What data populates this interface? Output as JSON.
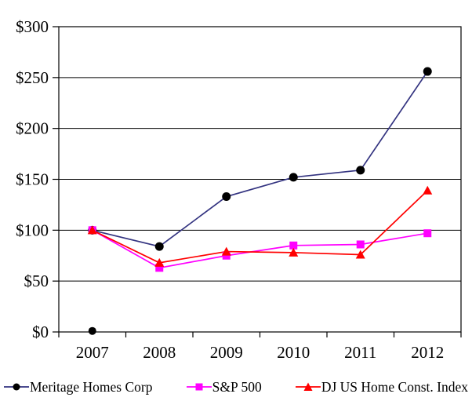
{
  "chart_data": {
    "type": "line",
    "title": "",
    "categories": [
      "2007",
      "2008",
      "2009",
      "2010",
      "2011",
      "2012"
    ],
    "series": [
      {
        "name": "Meritage Homes Corp",
        "marker": "circle",
        "marker_color": "#000000",
        "line_color": "#333380",
        "values": [
          100,
          84,
          133,
          152,
          159,
          256
        ]
      },
      {
        "name": "S&P 500",
        "marker": "square",
        "marker_color": "#ff00ff",
        "line_color": "#ff00ff",
        "values": [
          100,
          63,
          75,
          85,
          86,
          97
        ]
      },
      {
        "name": "DJ US Home Const. Index",
        "marker": "triangle",
        "marker_color": "#ff0000",
        "line_color": "#ff0000",
        "values": [
          100,
          68,
          79,
          78,
          76,
          139
        ]
      }
    ],
    "stray_points": [
      {
        "series": "Meritage Homes Corp",
        "category": "2007",
        "value": 1,
        "marker": "circle",
        "color": "#000000"
      }
    ],
    "y_ticks": [
      {
        "label": "$300",
        "value": 300
      },
      {
        "label": "$250",
        "value": 250
      },
      {
        "label": "$200",
        "value": 200
      },
      {
        "label": "$150",
        "value": 150
      },
      {
        "label": "$100",
        "value": 100
      },
      {
        "label": "$50",
        "value": 50
      },
      {
        "label": "$0",
        "value": 0
      }
    ],
    "ylim": [
      0,
      300
    ],
    "xlabel": "",
    "ylabel": "",
    "grid": "horizontal",
    "legend_position": "bottom",
    "axis_color": "#000000",
    "background_color": "#ffffff"
  }
}
